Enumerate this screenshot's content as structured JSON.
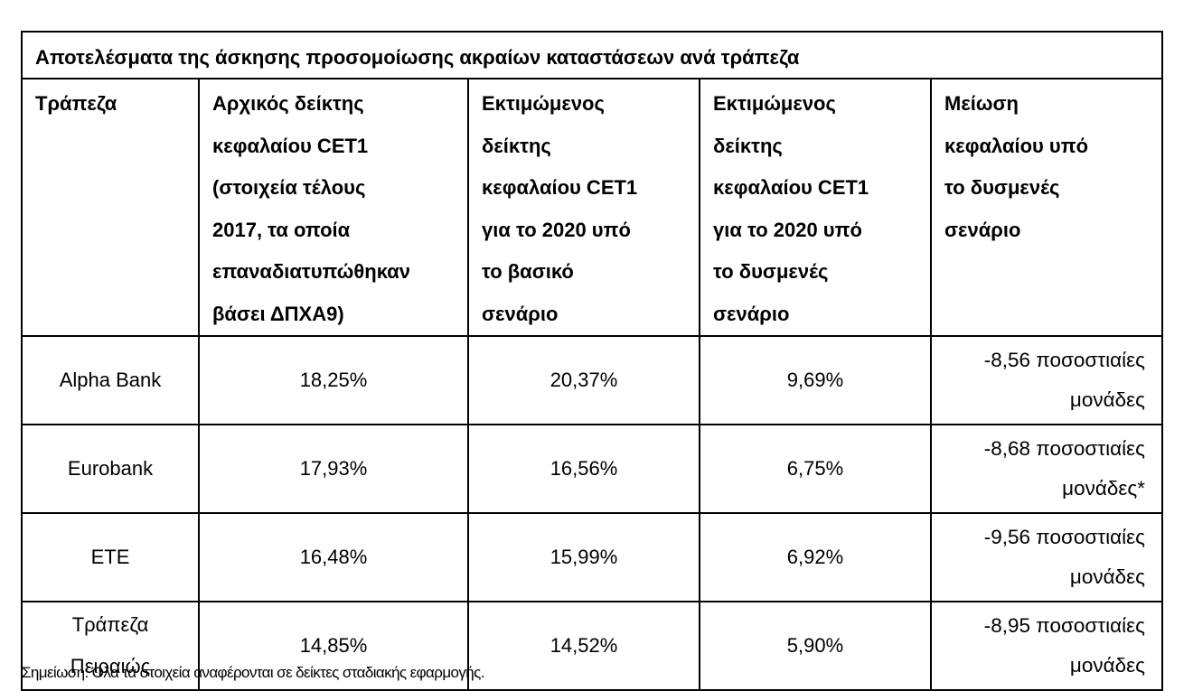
{
  "table": {
    "title": "Αποτελέσματα της άσκησης προσομοίωσης ακραίων καταστάσεων ανά τράπεζα",
    "headers": [
      {
        "lines": [
          "Τράπεζα"
        ]
      },
      {
        "lines": [
          "Αρχικός δείκτης",
          "κεφαλαίου CET1",
          "(στοιχεία τέλους",
          "2017, τα οποία",
          "επαναδιατυπώθηκαν",
          "βάσει ΔΠΧΑ9)"
        ]
      },
      {
        "lines": [
          "Εκτιμώμενος",
          "δείκτης",
          "κεφαλαίου CET1",
          "για το 2020 υπό",
          "το βασικό",
          "σενάριο"
        ]
      },
      {
        "lines": [
          "Εκτιμώμενος",
          "δείκτης",
          "κεφαλαίου CET1",
          "για το 2020 υπό",
          "το δυσμενές",
          "σενάριο"
        ]
      },
      {
        "lines": [
          "Μείωση",
          "κεφαλαίου υπό",
          "το δυσμενές",
          "σενάριο"
        ]
      }
    ],
    "rows": [
      {
        "bank": [
          "Alpha Bank"
        ],
        "initial_cet1": "18,25%",
        "baseline_2020": "20,37%",
        "adverse_2020": "9,69%",
        "reduction": [
          "-8,56 ποσοστιαίες",
          "μονάδες"
        ]
      },
      {
        "bank": [
          "Eurobank"
        ],
        "initial_cet1": "17,93%",
        "baseline_2020": "16,56%",
        "adverse_2020": "6,75%",
        "reduction": [
          "-8,68 ποσοστιαίες",
          "μονάδες*"
        ]
      },
      {
        "bank": [
          "ΕΤΕ"
        ],
        "initial_cet1": "16,48%",
        "baseline_2020": "15,99%",
        "adverse_2020": "6,92%",
        "reduction": [
          "-9,56 ποσοστιαίες",
          "μονάδες"
        ]
      },
      {
        "bank": [
          "Τράπεζα",
          "Πειραιώς"
        ],
        "initial_cet1": "14,85%",
        "baseline_2020": "14,52%",
        "adverse_2020": "5,90%",
        "reduction": [
          "-8,95 ποσοστιαίες",
          "μονάδες"
        ]
      }
    ]
  },
  "note": "Σημείωση: Όλα τα στοιχεία αναφέρονται σε δείκτες σταδιακής εφαρμογής."
}
